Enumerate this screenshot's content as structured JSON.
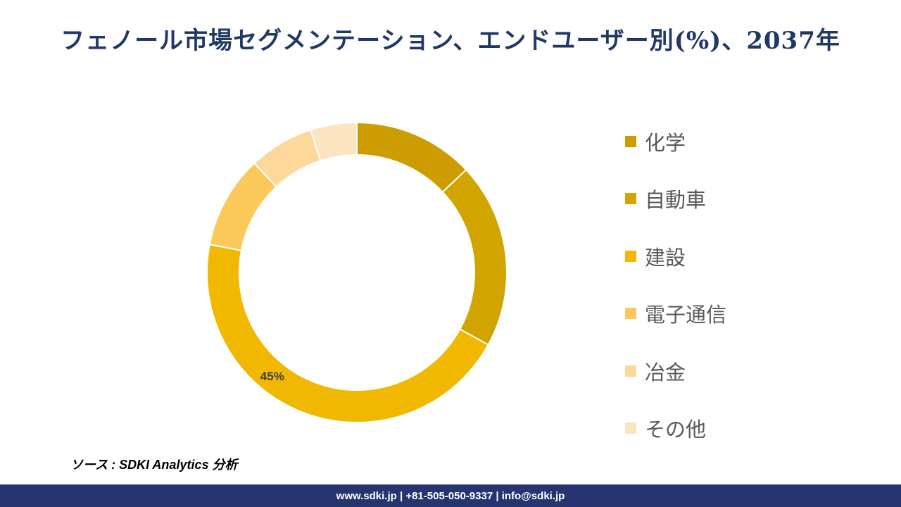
{
  "title": "フェノール市場セグメンテーション、エンドユーザー別(%)、2037年",
  "chart_data": {
    "type": "pie",
    "style": "donut",
    "categories": [
      "化学",
      "自動車",
      "建設",
      "電子通信",
      "冶金",
      "その他"
    ],
    "values": [
      13,
      20,
      45,
      10,
      7,
      5
    ],
    "colors": [
      "#cc9c00",
      "#d2a400",
      "#f0b800",
      "#fbc85a",
      "#fdd89a",
      "#fde4c0"
    ],
    "data_labels": [
      "",
      "",
      "45%",
      "",
      "",
      ""
    ],
    "legend_position": "right"
  },
  "source": "ソース : SDKI Analytics 分析",
  "footer": "www.sdki.jp | +81-505-050-9337 | info@sdki.jp"
}
